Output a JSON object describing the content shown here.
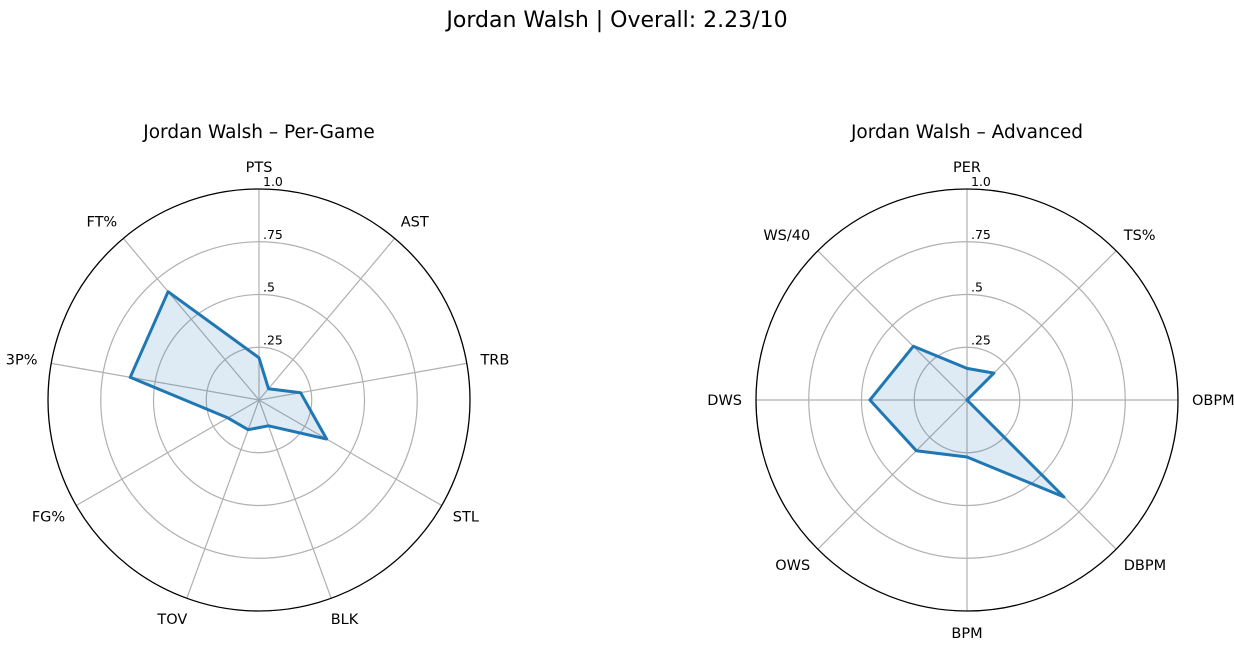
{
  "figure": {
    "suptitle": "Jordan Walsh | Overall: 2.23/10"
  },
  "style": {
    "series_color": "#1f77b4",
    "fill_color": "#1f77b4",
    "grid_color": "#b0b0b0",
    "frame_color": "#000000"
  },
  "radial_ticks": [
    ".25",
    ".5",
    ".75",
    "1.0"
  ],
  "chart_data": [
    {
      "type": "radar",
      "title": "Jordan Walsh – Per-Game",
      "rlim": [
        0,
        1
      ],
      "rticks": [
        0.25,
        0.5,
        0.75,
        1.0
      ],
      "grid": true,
      "categories": [
        "PTS",
        "AST",
        "TRB",
        "STL",
        "BLK",
        "TOV",
        "FG%",
        "3P%",
        "FT%"
      ],
      "values": [
        0.2,
        0.07,
        0.2,
        0.37,
        0.13,
        0.15,
        0.17,
        0.62,
        0.67
      ]
    },
    {
      "type": "radar",
      "title": "Jordan Walsh – Advanced",
      "rlim": [
        0,
        1
      ],
      "rticks": [
        0.25,
        0.5,
        0.75,
        1.0
      ],
      "grid": true,
      "categories": [
        "PER",
        "TS%",
        "OBPM",
        "DBPM",
        "BPM",
        "OWS",
        "DWS",
        "WS/40"
      ],
      "values": [
        0.15,
        0.18,
        0.0,
        0.65,
        0.27,
        0.34,
        0.46,
        0.36
      ]
    }
  ]
}
